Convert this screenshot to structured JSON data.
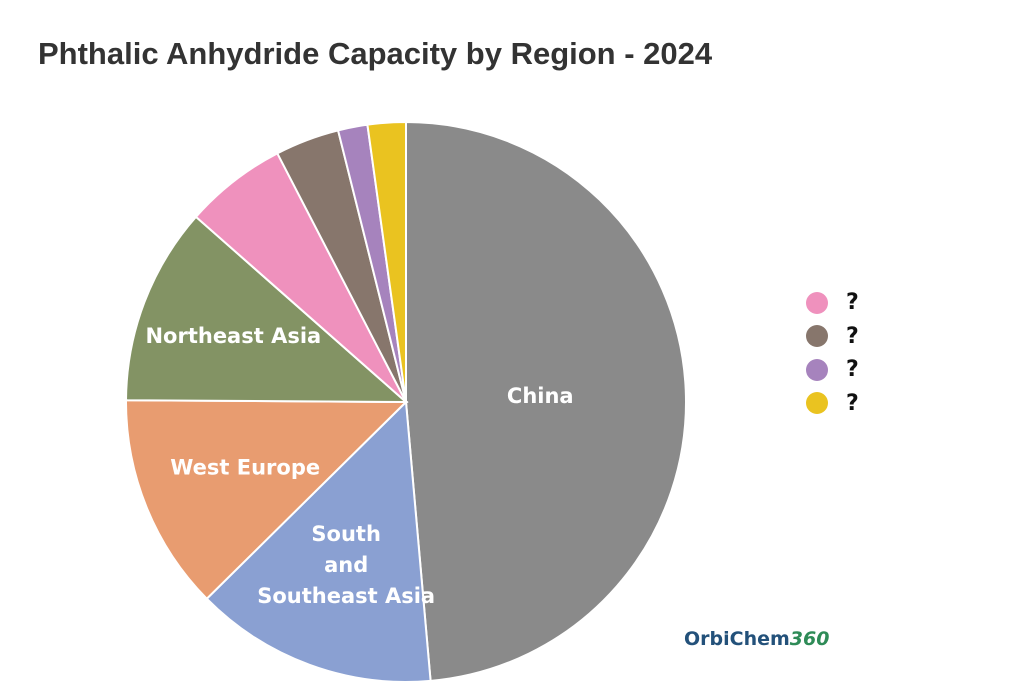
{
  "title": "Phthalic Anhydride Capacity by Region - 2024",
  "chart_data": {
    "type": "pie",
    "title": "Phthalic Anhydride Capacity by Region - 2024",
    "slices": [
      {
        "label": "China",
        "value": 48.6,
        "color": "#8a8a8a",
        "show_label": true
      },
      {
        "label": "South\nand\nSoutheast Asia",
        "value": 14.0,
        "color": "#8aa0d2",
        "show_label": true
      },
      {
        "label": "West Europe",
        "value": 12.5,
        "color": "#e89c70",
        "show_label": true
      },
      {
        "label": "Northeast Asia",
        "value": 11.4,
        "color": "#839364",
        "show_label": true
      },
      {
        "label": "?",
        "value": 5.9,
        "color": "#ef91bd",
        "show_label": false
      },
      {
        "label": "?",
        "value": 3.7,
        "color": "#87766c",
        "show_label": false
      },
      {
        "label": "?",
        "value": 1.7,
        "color": "#a683bd",
        "show_label": false
      },
      {
        "label": "?",
        "value": 2.2,
        "color": "#eac320",
        "show_label": false
      }
    ],
    "legend": {
      "placement": "right",
      "items": [
        {
          "label": "?",
          "color": "#ef91bd"
        },
        {
          "label": "?",
          "color": "#87766c"
        },
        {
          "label": "?",
          "color": "#a683bd"
        },
        {
          "label": "?",
          "color": "#eac320"
        }
      ]
    }
  },
  "logo": {
    "text": "OrbiChem",
    "number": "360"
  }
}
